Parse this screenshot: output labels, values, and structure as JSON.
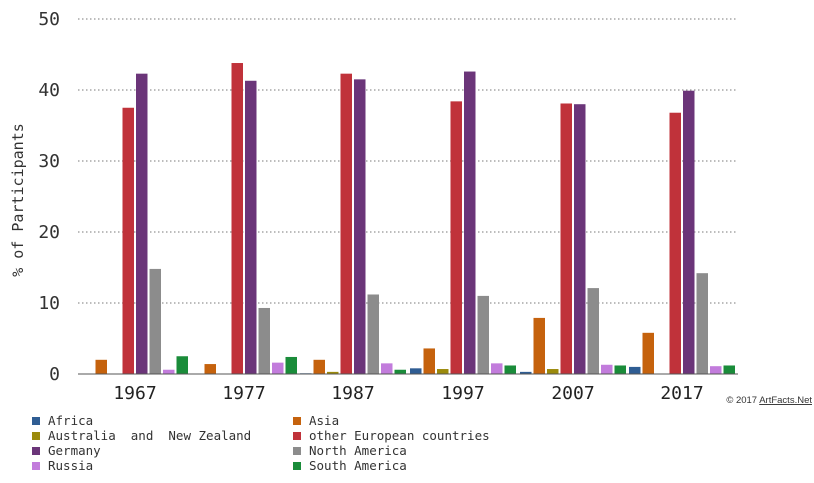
{
  "chart_data": {
    "type": "bar",
    "title": "",
    "xlabel": "",
    "ylabel": "% of Participants",
    "ylim": [
      0,
      50
    ],
    "yticks": [
      0,
      10,
      20,
      30,
      40,
      50
    ],
    "grid": true,
    "legend_position": "bottom",
    "categories": [
      "1967",
      "1977",
      "1987",
      "1997",
      "2007",
      "2017"
    ],
    "series": [
      {
        "name": "Africa",
        "color": "#2f5d93",
        "values": [
          0.0,
          0.0,
          0.1,
          0.8,
          0.3,
          1.0
        ]
      },
      {
        "name": "Asia",
        "color": "#c5620d",
        "values": [
          2.0,
          1.4,
          2.0,
          3.6,
          7.9,
          5.8
        ]
      },
      {
        "name": "Australia  and  New Zealand",
        "color": "#9b8a0c",
        "values": [
          0.0,
          0.0,
          0.3,
          0.7,
          0.7,
          0.0
        ]
      },
      {
        "name": "other European countries",
        "color": "#c0323a",
        "values": [
          37.5,
          43.8,
          42.3,
          38.4,
          38.1,
          36.8
        ]
      },
      {
        "name": "Germany",
        "color": "#6b3579",
        "values": [
          42.3,
          41.3,
          41.5,
          42.6,
          38.0,
          39.9
        ]
      },
      {
        "name": "North America",
        "color": "#8c8c8c",
        "values": [
          14.8,
          9.3,
          11.2,
          11.0,
          12.1,
          14.2
        ]
      },
      {
        "name": "Russia",
        "color": "#c27cdc",
        "values": [
          0.6,
          1.6,
          1.5,
          1.5,
          1.3,
          1.1
        ]
      },
      {
        "name": "South America",
        "color": "#1a8c3a",
        "values": [
          2.5,
          2.4,
          0.6,
          1.2,
          1.2,
          1.2
        ]
      }
    ]
  },
  "credit": {
    "prefix": "© 2017 ",
    "link": "ArtFacts.Net"
  }
}
